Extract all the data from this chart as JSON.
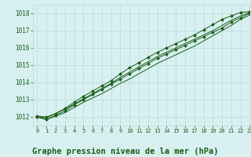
{
  "title": "Graphe pression niveau de la mer (hPa)",
  "bg_color": "#d8f0f0",
  "grid_color": "#b8d8d8",
  "line_color": "#1a5c1a",
  "marker_color": "#1a5c1a",
  "xlim": [
    -0.5,
    23
  ],
  "ylim": [
    1011.5,
    1018.5
  ],
  "yticks": [
    1012,
    1013,
    1014,
    1015,
    1016,
    1017,
    1018
  ],
  "xticks": [
    0,
    1,
    2,
    3,
    4,
    5,
    6,
    7,
    8,
    9,
    10,
    11,
    12,
    13,
    14,
    15,
    16,
    17,
    18,
    19,
    20,
    21,
    22,
    23
  ],
  "series": [
    [
      1012.0,
      1011.85,
      1012.05,
      1012.25,
      1012.55,
      1012.85,
      1013.1,
      1013.35,
      1013.65,
      1013.95,
      1014.2,
      1014.5,
      1014.8,
      1015.1,
      1015.35,
      1015.6,
      1015.85,
      1016.1,
      1016.4,
      1016.7,
      1017.0,
      1017.3,
      1017.65,
      1017.9
    ],
    [
      1012.0,
      1011.85,
      1012.1,
      1012.35,
      1012.7,
      1013.0,
      1013.3,
      1013.6,
      1013.9,
      1014.2,
      1014.5,
      1014.8,
      1015.1,
      1015.4,
      1015.65,
      1015.9,
      1016.15,
      1016.4,
      1016.65,
      1016.9,
      1017.15,
      1017.5,
      1017.75,
      1018.0
    ],
    [
      1012.0,
      1011.95,
      1012.2,
      1012.45,
      1012.75,
      1013.05,
      1013.35,
      1013.65,
      1013.95,
      1014.3,
      1014.6,
      1014.9,
      1015.2,
      1015.5,
      1015.75,
      1016.0,
      1016.25,
      1016.5,
      1016.75,
      1017.0,
      1017.3,
      1017.6,
      1017.85,
      1018.05
    ],
    [
      1012.05,
      1012.0,
      1012.2,
      1012.5,
      1012.85,
      1013.2,
      1013.5,
      1013.8,
      1014.1,
      1014.5,
      1014.85,
      1015.15,
      1015.45,
      1015.75,
      1016.0,
      1016.25,
      1016.5,
      1016.75,
      1017.05,
      1017.35,
      1017.65,
      1017.85,
      1018.05,
      1018.1
    ]
  ],
  "marker_series": [
    1,
    3
  ],
  "title_color": "#1a5c1a",
  "title_fontsize": 7.5,
  "tick_fontsize": 5.5
}
